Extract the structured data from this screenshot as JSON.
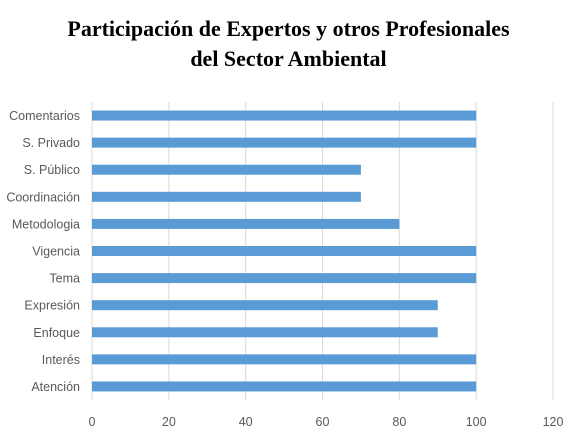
{
  "chart_data": {
    "type": "bar",
    "orientation": "horizontal",
    "title_lines": [
      "Participación de Expertos y otros Profesionales",
      "del Sector Ambiental"
    ],
    "categories": [
      "Atención",
      "Interés",
      "Enfoque",
      "Expresión",
      "Tema",
      "Vigencia",
      "Metodologia",
      "Coordinación",
      "S. Público",
      "S. Privado",
      "Comentarios"
    ],
    "values": [
      100,
      100,
      90,
      90,
      100,
      100,
      80,
      70,
      70,
      100,
      100
    ],
    "xlim": [
      0,
      120
    ],
    "xticks": [
      "0",
      "20",
      "40",
      "60",
      "80",
      "100",
      "120"
    ],
    "grid": true,
    "bar_color": "#5b9bd5",
    "grid_color": "#d9d9d9"
  }
}
